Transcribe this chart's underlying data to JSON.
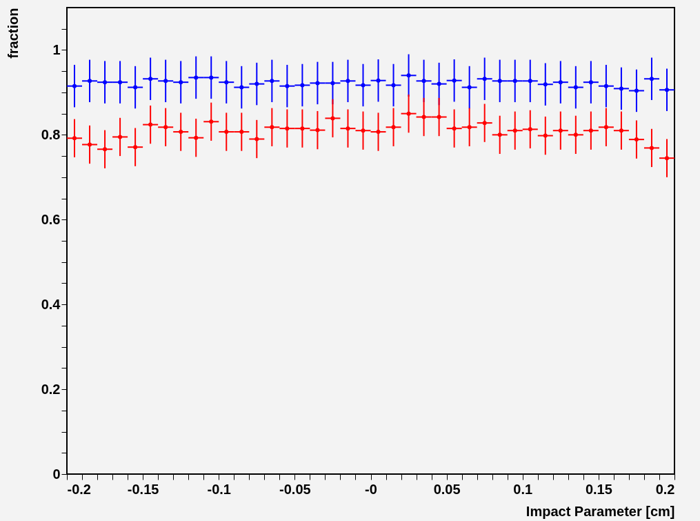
{
  "chart_data": {
    "type": "scatter",
    "xlabel": "Impact Parameter [cm]",
    "ylabel": "fraction",
    "marker": "circle",
    "x": [
      -0.195,
      -0.185,
      -0.175,
      -0.165,
      -0.155,
      -0.145,
      -0.135,
      -0.125,
      -0.115,
      -0.105,
      -0.095,
      -0.085,
      -0.075,
      -0.065,
      -0.055,
      -0.045,
      -0.035,
      -0.025,
      -0.015,
      -0.005,
      0.005,
      0.015,
      0.025,
      0.035,
      0.045,
      0.055,
      0.065,
      0.075,
      0.085,
      0.095,
      0.105,
      0.115,
      0.125,
      0.135,
      0.145,
      0.155,
      0.165,
      0.175,
      0.185,
      0.195
    ],
    "series": [
      {
        "color": "#0000ff",
        "values": [
          0.915,
          0.927,
          0.924,
          0.924,
          0.912,
          0.932,
          0.927,
          0.924,
          0.935,
          0.935,
          0.924,
          0.912,
          0.92,
          0.927,
          0.915,
          0.917,
          0.922,
          0.922,
          0.927,
          0.917,
          0.928,
          0.917,
          0.94,
          0.927,
          0.92,
          0.928,
          0.912,
          0.932,
          0.927,
          0.927,
          0.927,
          0.919,
          0.924,
          0.912,
          0.924,
          0.915,
          0.909,
          0.904,
          0.932,
          0.906
        ],
        "errors": [
          0.05,
          0.05,
          0.05,
          0.05,
          0.05,
          0.05,
          0.05,
          0.05,
          0.05,
          0.05,
          0.05,
          0.05,
          0.05,
          0.05,
          0.05,
          0.05,
          0.05,
          0.05,
          0.05,
          0.05,
          0.05,
          0.05,
          0.05,
          0.05,
          0.05,
          0.05,
          0.05,
          0.05,
          0.05,
          0.05,
          0.05,
          0.05,
          0.05,
          0.05,
          0.05,
          0.05,
          0.05,
          0.05,
          0.05,
          0.05
        ],
        "xerrors": [
          0.005,
          0.005,
          0.005,
          0.005,
          0.005,
          0.005,
          0.005,
          0.005,
          0.005,
          0.005,
          0.005,
          0.005,
          0.005,
          0.005,
          0.005,
          0.005,
          0.005,
          0.005,
          0.005,
          0.005,
          0.005,
          0.005,
          0.005,
          0.005,
          0.005,
          0.005,
          0.005,
          0.005,
          0.005,
          0.005,
          0.005,
          0.005,
          0.005,
          0.005,
          0.005,
          0.005,
          0.005,
          0.005,
          0.005,
          0.005
        ]
      },
      {
        "color": "#ff0000",
        "values": [
          0.792,
          0.777,
          0.766,
          0.795,
          0.771,
          0.824,
          0.818,
          0.807,
          0.793,
          0.831,
          0.807,
          0.807,
          0.79,
          0.818,
          0.815,
          0.815,
          0.811,
          0.839,
          0.815,
          0.81,
          0.807,
          0.818,
          0.85,
          0.842,
          0.842,
          0.815,
          0.818,
          0.828,
          0.8,
          0.81,
          0.813,
          0.798,
          0.81,
          0.8,
          0.81,
          0.818,
          0.81,
          0.789,
          0.769,
          0.745
        ],
        "errors": [
          0.045,
          0.045,
          0.045,
          0.045,
          0.045,
          0.045,
          0.045,
          0.045,
          0.045,
          0.045,
          0.045,
          0.045,
          0.045,
          0.045,
          0.045,
          0.045,
          0.045,
          0.045,
          0.045,
          0.045,
          0.045,
          0.045,
          0.045,
          0.045,
          0.045,
          0.045,
          0.045,
          0.045,
          0.045,
          0.045,
          0.045,
          0.045,
          0.045,
          0.045,
          0.045,
          0.045,
          0.045,
          0.045,
          0.045,
          0.045
        ],
        "xerrors": [
          0.005,
          0.005,
          0.005,
          0.005,
          0.005,
          0.005,
          0.005,
          0.005,
          0.005,
          0.005,
          0.005,
          0.005,
          0.005,
          0.005,
          0.005,
          0.005,
          0.005,
          0.005,
          0.005,
          0.005,
          0.005,
          0.005,
          0.005,
          0.005,
          0.005,
          0.005,
          0.005,
          0.005,
          0.005,
          0.005,
          0.005,
          0.005,
          0.005,
          0.005,
          0.005,
          0.005,
          0.005,
          0.005,
          0.005,
          0.005
        ]
      }
    ],
    "xlim": [
      -0.2,
      0.2
    ],
    "xticks": [
      -0.2,
      {
        "value": -0.19,
        "label": null
      },
      {
        "value": -0.18,
        "label": null
      },
      {
        "value": -0.17,
        "label": null
      },
      {
        "value": -0.16,
        "label": null
      },
      -0.15,
      {
        "value": -0.14,
        "label": null
      },
      {
        "value": -0.13,
        "label": null
      },
      {
        "value": -0.12,
        "label": null
      },
      {
        "value": -0.11,
        "label": null
      },
      -0.1,
      {
        "value": -0.09,
        "label": null
      },
      {
        "value": -0.08,
        "label": null
      },
      {
        "value": -0.07,
        "label": null
      },
      {
        "value": -0.06,
        "label": null
      },
      -0.05,
      {
        "value": -0.04,
        "label": null
      },
      {
        "value": -0.03,
        "label": null
      },
      {
        "value": -0.02,
        "label": null
      },
      {
        "value": -0.01,
        "label": null
      },
      {
        "value": 0,
        "label": "-0"
      },
      {
        "value": 0.01,
        "label": null
      },
      {
        "value": 0.02,
        "label": null
      },
      {
        "value": 0.03,
        "label": null
      },
      {
        "value": 0.04,
        "label": null
      },
      0.05,
      {
        "value": 0.06,
        "label": null
      },
      {
        "value": 0.07,
        "label": null
      },
      {
        "value": 0.08,
        "label": null
      },
      {
        "value": 0.09,
        "label": null
      },
      0.1,
      {
        "value": 0.11,
        "label": null
      },
      {
        "value": 0.12,
        "label": null
      },
      {
        "value": 0.13,
        "label": null
      },
      {
        "value": 0.14,
        "label": null
      },
      0.15,
      {
        "value": 0.16,
        "label": null
      },
      {
        "value": 0.17,
        "label": null
      },
      {
        "value": 0.18,
        "label": null
      },
      {
        "value": 0.19,
        "label": null
      },
      0.2
    ],
    "ylim": [
      0,
      1.1
    ],
    "yticks": [
      0,
      {
        "value": 0.05,
        "label": null
      },
      {
        "value": 0.1,
        "label": null
      },
      {
        "value": 0.15,
        "label": null
      },
      0.2,
      {
        "value": 0.25,
        "label": null
      },
      {
        "value": 0.3,
        "label": null
      },
      {
        "value": 0.35,
        "label": null
      },
      0.4,
      {
        "value": 0.45,
        "label": null
      },
      {
        "value": 0.5,
        "label": null
      },
      {
        "value": 0.55,
        "label": null
      },
      0.6,
      {
        "value": 0.65,
        "label": null
      },
      {
        "value": 0.7,
        "label": null
      },
      {
        "value": 0.75,
        "label": null
      },
      0.8,
      {
        "value": 0.85,
        "label": null
      },
      {
        "value": 0.9,
        "label": null
      },
      {
        "value": 0.95,
        "label": null
      },
      1,
      {
        "value": 1.05,
        "label": null
      }
    ],
    "grid": false
  }
}
